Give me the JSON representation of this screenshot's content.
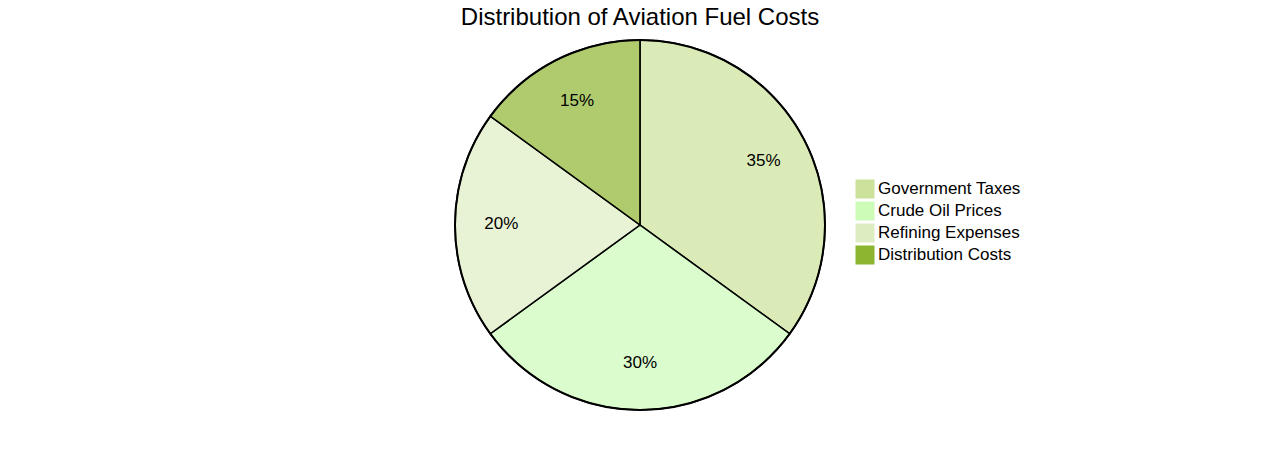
{
  "chart_data": {
    "type": "pie",
    "title": "Distribution of Aviation Fuel Costs",
    "categories": [
      "Government Taxes",
      "Crude Oil Prices",
      "Refining Expenses",
      "Distribution Costs"
    ],
    "values": [
      35,
      30,
      20,
      15
    ],
    "value_labels": [
      "35%",
      "30%",
      "20%",
      "15%"
    ],
    "colors": [
      "#cce29a",
      "#ccfcb8",
      "#deecc2",
      "#8eb530"
    ],
    "data_labels": true
  }
}
